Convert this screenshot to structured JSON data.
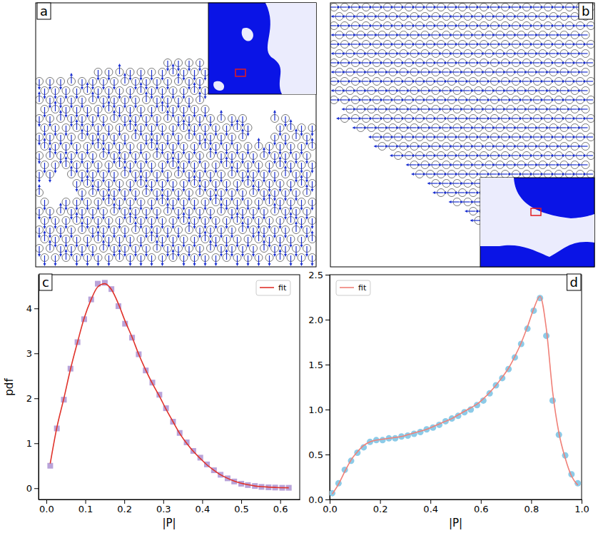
{
  "chart_data": [
    {
      "type": "image",
      "title": "a"
    },
    {
      "type": "image",
      "title": "b"
    },
    {
      "type": "scatter",
      "title": "c",
      "x_label": "|P|",
      "y_label": "pdf",
      "legend": "upper right",
      "xlim": [
        -0.02,
        0.65
      ],
      "ylim": [
        -0.25,
        4.75
      ],
      "xticks": [
        {
          "value": 0,
          "label": "0.0"
        },
        0.1,
        0.2,
        0.3,
        0.4,
        0.5,
        0.6
      ],
      "yticks": [
        0,
        1,
        2,
        3,
        4
      ],
      "x": [
        0.01,
        0.027,
        0.045,
        0.062,
        0.08,
        0.097,
        0.115,
        0.132,
        0.15,
        0.167,
        0.185,
        0.202,
        0.22,
        0.237,
        0.255,
        0.272,
        0.29,
        0.307,
        0.325,
        0.342,
        0.36,
        0.377,
        0.395,
        0.412,
        0.43,
        0.447,
        0.465,
        0.482,
        0.5,
        0.517,
        0.535,
        0.552,
        0.57,
        0.587,
        0.605,
        0.622
      ],
      "series": [
        {
          "type": "scatter",
          "marker": "square",
          "color": "#b9a3d9",
          "values": [
            0.5,
            1.33,
            1.97,
            2.66,
            3.25,
            3.76,
            4.2,
            4.55,
            4.57,
            4.43,
            4.05,
            3.66,
            3.35,
            2.98,
            2.62,
            2.35,
            2.08,
            1.78,
            1.48,
            1.23,
            1.02,
            0.83,
            0.68,
            0.53,
            0.4,
            0.3,
            0.22,
            0.15,
            0.1,
            0.07,
            0.05,
            0.03,
            0.02,
            0.015,
            0.01,
            0.01
          ]
        },
        {
          "type": "line",
          "name": "fit",
          "color": "#e0322a",
          "line_style": "solid",
          "values": [
            0.55,
            1.35,
            2.0,
            2.65,
            3.25,
            3.78,
            4.2,
            4.48,
            4.55,
            4.42,
            4.1,
            3.72,
            3.36,
            2.98,
            2.63,
            2.33,
            2.05,
            1.76,
            1.48,
            1.22,
            1.0,
            0.82,
            0.66,
            0.52,
            0.4,
            0.3,
            0.22,
            0.16,
            0.11,
            0.08,
            0.05,
            0.035,
            0.025,
            0.018,
            0.012,
            0.01
          ]
        }
      ]
    },
    {
      "type": "scatter",
      "title": "d",
      "x_label": "|P|",
      "legend": "upper left",
      "xlim": [
        0,
        1
      ],
      "ylim": [
        0,
        2.5
      ],
      "xticks": [
        {
          "value": 0,
          "label": "0.0"
        },
        0.2,
        0.4,
        0.6,
        0.8,
        {
          "value": 1,
          "label": "1.0"
        }
      ],
      "yticks": [
        {
          "value": 0,
          "label": "0.0"
        },
        0.5,
        {
          "value": 1,
          "label": "1.0"
        },
        1.5,
        {
          "value": 2,
          "label": "2.0"
        },
        2.5
      ],
      "x": [
        0.01,
        0.035,
        0.06,
        0.085,
        0.11,
        0.135,
        0.16,
        0.185,
        0.21,
        0.235,
        0.26,
        0.285,
        0.31,
        0.335,
        0.36,
        0.385,
        0.41,
        0.435,
        0.46,
        0.485,
        0.51,
        0.535,
        0.56,
        0.585,
        0.61,
        0.635,
        0.66,
        0.685,
        0.71,
        0.735,
        0.76,
        0.785,
        0.81,
        0.835,
        0.86,
        0.885,
        0.91,
        0.935,
        0.96,
        0.985
      ],
      "series": [
        {
          "type": "scatter",
          "marker": "circle",
          "color": "#8ccbe8",
          "values": [
            0.07,
            0.18,
            0.33,
            0.43,
            0.52,
            0.58,
            0.64,
            0.66,
            0.66,
            0.68,
            0.68,
            0.7,
            0.71,
            0.73,
            0.75,
            0.78,
            0.8,
            0.83,
            0.87,
            0.9,
            0.93,
            0.97,
            1.0,
            1.05,
            1.1,
            1.18,
            1.27,
            1.35,
            1.45,
            1.58,
            1.73,
            1.9,
            2.1,
            2.24,
            1.82,
            1.1,
            0.72,
            0.49,
            0.28,
            0.18
          ]
        },
        {
          "type": "line",
          "name": "fit",
          "color": "#f08078",
          "line_style": "solid",
          "values": [
            0.06,
            0.17,
            0.31,
            0.44,
            0.53,
            0.6,
            0.64,
            0.66,
            0.67,
            0.68,
            0.69,
            0.7,
            0.72,
            0.74,
            0.76,
            0.78,
            0.81,
            0.84,
            0.87,
            0.9,
            0.94,
            0.98,
            1.02,
            1.06,
            1.12,
            1.19,
            1.27,
            1.36,
            1.46,
            1.59,
            1.74,
            1.92,
            2.12,
            2.26,
            1.9,
            1.2,
            0.74,
            0.46,
            0.26,
            0.16
          ]
        }
      ]
    }
  ]
}
